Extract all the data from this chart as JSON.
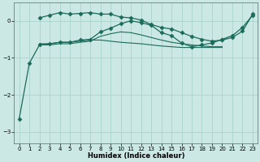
{
  "xlabel": "Humidex (Indice chaleur)",
  "bg_color": "#cce8e4",
  "grid_color": "#aad4cc",
  "line_color": "#1a6b5a",
  "xlim": [
    -0.5,
    23.5
  ],
  "ylim": [
    -3.3,
    0.5
  ],
  "yticks": [
    -3,
    -2,
    -1,
    0
  ],
  "line1_x": [
    0,
    1,
    2,
    3,
    4,
    5,
    6,
    7,
    8,
    9,
    10,
    11,
    12,
    13,
    14,
    15,
    16,
    17,
    18,
    19,
    20,
    21,
    22,
    23
  ],
  "line1_y": [
    -2.65,
    -1.15,
    -0.65,
    -0.62,
    -0.58,
    -0.58,
    -0.52,
    -0.5,
    -0.3,
    -0.2,
    -0.08,
    0.0,
    -0.05,
    -0.12,
    -0.32,
    -0.4,
    -0.6,
    -0.7,
    -0.65,
    -0.6,
    -0.5,
    -0.4,
    -0.18,
    0.15
  ],
  "line2_x": [
    2,
    3,
    4,
    5,
    6,
    7,
    8,
    9,
    10,
    11,
    12,
    13,
    14,
    15,
    16,
    17,
    18,
    19,
    20
  ],
  "line2_y": [
    -0.62,
    -0.62,
    -0.58,
    -0.58,
    -0.55,
    -0.52,
    -0.52,
    -0.55,
    -0.58,
    -0.6,
    -0.62,
    -0.65,
    -0.68,
    -0.7,
    -0.72,
    -0.72,
    -0.72,
    -0.72,
    -0.72
  ],
  "line3_x": [
    2,
    3,
    4,
    5,
    6,
    7,
    8,
    9,
    10,
    11,
    12,
    13,
    14,
    15,
    16,
    17,
    18,
    19,
    20
  ],
  "line3_y": [
    -0.65,
    -0.65,
    -0.62,
    -0.62,
    -0.58,
    -0.55,
    -0.42,
    -0.35,
    -0.3,
    -0.32,
    -0.38,
    -0.45,
    -0.52,
    -0.58,
    -0.62,
    -0.65,
    -0.68,
    -0.7,
    -0.7
  ],
  "line4_x": [
    2,
    3,
    4,
    5,
    6,
    7,
    8,
    9,
    10,
    11,
    12,
    13,
    14,
    15,
    16,
    17,
    18,
    19,
    20,
    21,
    22,
    23
  ],
  "line4_y": [
    0.08,
    0.15,
    0.22,
    0.18,
    0.2,
    0.22,
    0.18,
    0.18,
    0.1,
    0.08,
    0.02,
    -0.1,
    -0.18,
    -0.22,
    -0.32,
    -0.42,
    -0.5,
    -0.55,
    -0.52,
    -0.45,
    -0.28,
    0.18
  ]
}
